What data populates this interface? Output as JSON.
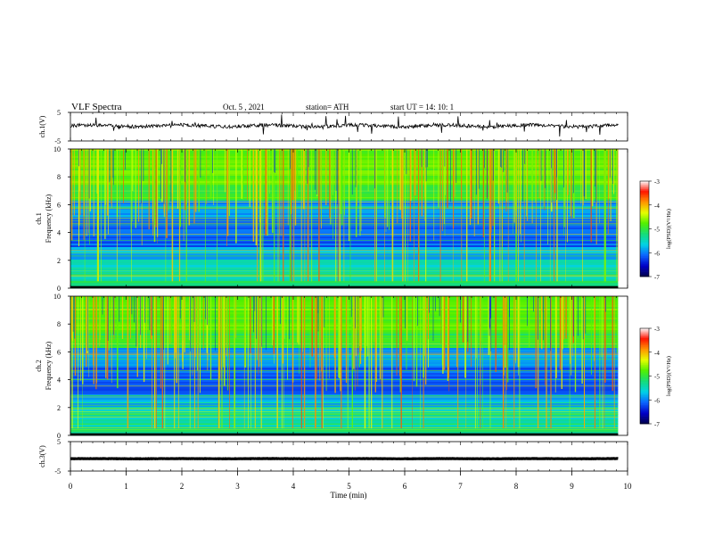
{
  "header": {
    "title": "VLF  Spectra",
    "date": "Oct. 5  , 2021",
    "station": "station= ATH",
    "start_ut": "start  UT  =    14: 10: 1"
  },
  "chart_data": [
    {
      "panel": "ch1-waveform",
      "type": "line",
      "ylabel": "ch.1(V)",
      "ylim": [
        -5,
        5
      ],
      "yticks": [
        "5",
        "-5"
      ],
      "xlim": [
        0,
        10
      ],
      "baseline_v": 0.3,
      "noise_amplitude_v": 1.2
    },
    {
      "panel": "ch1-spectrogram",
      "type": "heatmap",
      "ylabel_lines": [
        "ch.1",
        "Frequency  (kHz)"
      ],
      "ylim": [
        0,
        10
      ],
      "yticks": [
        "0",
        "2",
        "4",
        "6",
        "8",
        "10"
      ],
      "xlim": [
        0,
        10
      ],
      "colorbar": {
        "label": "log(PSD)(V²/Hz)",
        "ticks": [
          "-3",
          "-4",
          "-5",
          "-6",
          "-7"
        ],
        "range": [
          -7,
          -3
        ]
      }
    },
    {
      "panel": "ch2-spectrogram",
      "type": "heatmap",
      "ylabel_lines": [
        "ch.2",
        "Frequency  (kHz)"
      ],
      "ylim": [
        0,
        10
      ],
      "yticks": [
        "0",
        "2",
        "4",
        "6",
        "8",
        "10"
      ],
      "xlim": [
        0,
        10
      ],
      "colorbar": {
        "label": "log(PSD)(V²/Hz)",
        "ticks": [
          "-3",
          "-4",
          "-5",
          "-6",
          "-7"
        ],
        "range": [
          -7,
          -3
        ]
      }
    },
    {
      "panel": "ch3-waveform",
      "type": "line",
      "ylabel": "ch.3(V)",
      "ylim": [
        -5,
        5
      ],
      "yticks": [
        "5",
        "-5"
      ],
      "xlim": [
        0,
        10
      ],
      "baseline_v": -0.8,
      "noise_amplitude_v": 0.1
    }
  ],
  "x_axis": {
    "label": "Time  (min)",
    "ticks": [
      "0",
      "1",
      "2",
      "3",
      "4",
      "5",
      "6",
      "7",
      "8",
      "9",
      "10"
    ],
    "data_end_min": 9.83
  },
  "colors": {
    "trace": "#000000",
    "colormap": [
      "#00004a",
      "#0000c8",
      "#0a64ff",
      "#00d2e6",
      "#14dc78",
      "#50f000",
      "#e6ff00",
      "#ff9600",
      "#ff1400",
      "#ffffff"
    ]
  }
}
